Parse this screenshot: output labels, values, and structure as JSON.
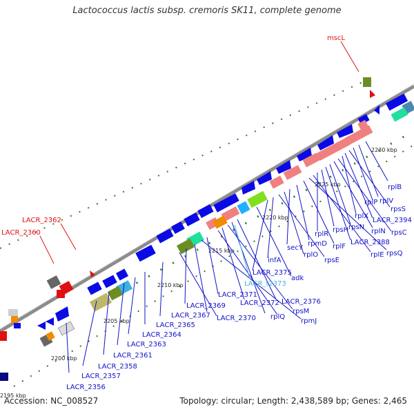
{
  "title": "Lactococcus lactis subsp. cremoris SK11, complete genome",
  "footer": {
    "accession": "Accession: NC_008527",
    "topology": "Topology: circular; Length: 2,438,589 bp; Genes: 2,465"
  },
  "kbp_ticks": [
    "2200 kbp",
    "2205 kbp",
    "2210 kbp",
    "2215 kbp",
    "2220 kbp",
    "2225 kbp",
    "2230 kbp",
    "2195 kbp"
  ],
  "colors": {
    "gene_label": "#1010c8",
    "highlight_label": "#e01010",
    "trna_label": "#40b0e0",
    "backbone": "#8c8c8c",
    "gene_fill": "#0a0ae6",
    "ribosomal": "#f08080"
  },
  "gene_labels": [
    {
      "text": "rplB",
      "color": "gene"
    },
    {
      "text": "rplV",
      "color": "gene"
    },
    {
      "text": "rplP",
      "color": "gene"
    },
    {
      "text": "rpsS",
      "color": "gene"
    },
    {
      "text": "LACR_2394",
      "color": "gene"
    },
    {
      "text": "rplX",
      "color": "gene"
    },
    {
      "text": "rpsC",
      "color": "gene"
    },
    {
      "text": "rplN",
      "color": "gene"
    },
    {
      "text": "rpsN",
      "color": "gene"
    },
    {
      "text": "LACR_2388",
      "color": "gene"
    },
    {
      "text": "rpsH",
      "color": "gene"
    },
    {
      "text": "rplR",
      "color": "gene"
    },
    {
      "text": "rplE",
      "color": "gene"
    },
    {
      "text": "rpsQ",
      "color": "gene"
    },
    {
      "text": "rplF",
      "color": "gene"
    },
    {
      "text": "rpmD",
      "color": "gene"
    },
    {
      "text": "secY",
      "color": "gene"
    },
    {
      "text": "rplO",
      "color": "gene"
    },
    {
      "text": "rpsE",
      "color": "gene"
    },
    {
      "text": "infA",
      "color": "gene"
    },
    {
      "text": "LACR_2375",
      "color": "gene"
    },
    {
      "text": "adk",
      "color": "gene"
    },
    {
      "text": "LACR_t2373",
      "color": "trna"
    },
    {
      "text": "LACR_2371",
      "color": "gene"
    },
    {
      "text": "LACR_2376",
      "color": "gene"
    },
    {
      "text": "LACR_2372",
      "color": "gene"
    },
    {
      "text": "rpsM",
      "color": "gene"
    },
    {
      "text": "LACR_2369",
      "color": "gene"
    },
    {
      "text": "rplQ",
      "color": "gene"
    },
    {
      "text": "rpmJ",
      "color": "gene"
    },
    {
      "text": "LACR_2367",
      "color": "gene"
    },
    {
      "text": "LACR_2370",
      "color": "gene"
    },
    {
      "text": "LACR_2365",
      "color": "gene"
    },
    {
      "text": "LACR_2364",
      "color": "gene"
    },
    {
      "text": "LACR_2363",
      "color": "gene"
    },
    {
      "text": "LACR_2361",
      "color": "gene"
    },
    {
      "text": "LACR_2358",
      "color": "gene"
    },
    {
      "text": "LACR_2357",
      "color": "gene"
    },
    {
      "text": "LACR_2356",
      "color": "gene"
    },
    {
      "text": "mscL",
      "color": "highlight"
    },
    {
      "text": "LACR_2362",
      "color": "highlight"
    },
    {
      "text": "LACR_2360",
      "color": "highlight"
    }
  ]
}
